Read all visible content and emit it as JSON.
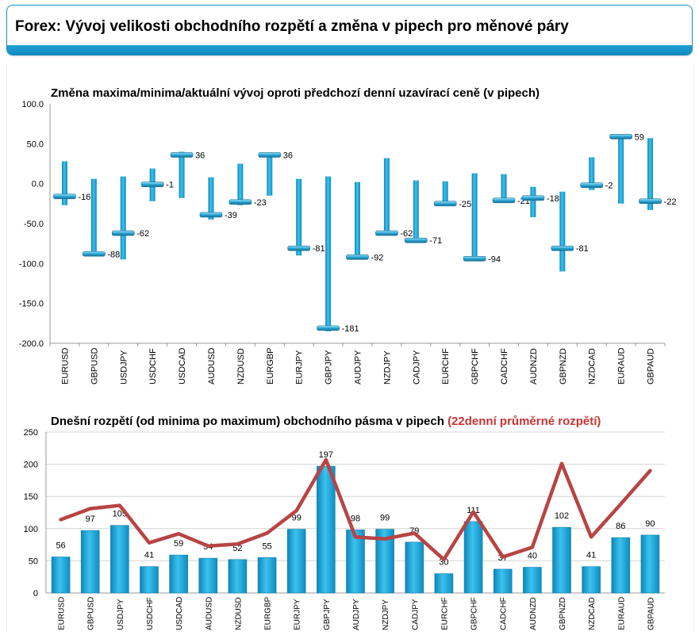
{
  "header": {
    "title": "Forex: Vývoj velikosti obchodního rozpětí a změna v pipech pro měnové páry"
  },
  "colors": {
    "bar": "#1a9fd0",
    "bar_dark": "#0f7fb0",
    "line": "#b84444",
    "accent": "#cc3333",
    "header_band": "#1a95c9"
  },
  "chart_data": [
    {
      "type": "range",
      "title": "Změna maxima/minima/aktuální vývoj oproti předchozí denní uzavírací ceně (v pipech)",
      "ylim": [
        -200,
        100
      ],
      "yticks": [
        "100.0",
        "50.0",
        "0.0",
        "-50.0",
        "-100.0",
        "-150.0",
        "-200.0"
      ],
      "ytick_values": [
        100,
        50,
        0,
        -50,
        -100,
        -150,
        -200
      ],
      "categories": [
        "EURUSD",
        "GBPUSD",
        "USDJPY",
        "USDCHF",
        "USDCAD",
        "AUDUSD",
        "NZDUSD",
        "EURGBP",
        "EURJPY",
        "GBPJPY",
        "AUDJPY",
        "NZDJPY",
        "CADJPY",
        "EURCHF",
        "GBPCHF",
        "CADCHF",
        "AUDNZD",
        "GBPNZD",
        "NZDCAD",
        "EURAUD",
        "GBPAUD"
      ],
      "high": [
        28,
        6,
        9,
        19,
        40,
        8,
        25,
        38,
        6,
        9,
        2,
        32,
        4,
        3,
        13,
        12,
        -4,
        -10,
        33,
        61,
        57
      ],
      "low": [
        -27,
        -88,
        -95,
        -22,
        -18,
        -45,
        -27,
        -15,
        -90,
        -185,
        -95,
        -63,
        -72,
        -25,
        -96,
        -22,
        -42,
        -110,
        -8,
        -25,
        -33
      ],
      "current": [
        -16,
        -88,
        -62,
        -1,
        36,
        -39,
        -23,
        36,
        -81,
        -181,
        -92,
        -62,
        -71,
        -25,
        -94,
        -21,
        -18,
        -81,
        -2,
        59,
        -22
      ],
      "labels": [
        "-16",
        "-88",
        "-62",
        "-1",
        "36",
        "-39",
        "-23",
        "36",
        "-81",
        "-181",
        "-92",
        "-62",
        "-71",
        "-25",
        "-94",
        "-21",
        "-18",
        "-81",
        "-2",
        "59",
        "-22"
      ]
    },
    {
      "type": "bar",
      "title": "Dnešní rozpětí (od minima po maximum) obchodního pásma v pipech",
      "title_accent": "(22denní průměrné rozpětí)",
      "ylim": [
        0,
        250
      ],
      "yticks": [
        "250",
        "200",
        "150",
        "100",
        "50",
        "0"
      ],
      "ytick_values": [
        250,
        200,
        150,
        100,
        50,
        0
      ],
      "categories": [
        "EURUSD",
        "GBPUSD",
        "USDJPY",
        "USDCHF",
        "USDCAD",
        "AUDUSD",
        "NZDUSD",
        "EURGBP",
        "EURJPY",
        "GBPJPY",
        "AUDJPY",
        "NZDJPY",
        "CADJPY",
        "EURCHF",
        "GBPCHF",
        "CADCHF",
        "AUDNZD",
        "GBPNZD",
        "NZDCAD",
        "EURAUD",
        "GBPAUD"
      ],
      "series": [
        {
          "values": [
            56,
            97,
            105,
            41,
            59,
            54,
            52,
            55,
            99,
            197,
            98,
            99,
            79,
            30,
            111,
            37,
            40,
            102,
            41,
            86,
            90
          ],
          "labels": [
            "56",
            "97",
            "105",
            "41",
            "59",
            "54",
            "52",
            "55",
            "99",
            "197",
            "98",
            "99",
            "79",
            "30",
            "111",
            "37",
            "40",
            "102",
            "41",
            "86",
            "90"
          ]
        },
        {
          "values": [
            114,
            131,
            136,
            78,
            92,
            73,
            76,
            93,
            128,
            207,
            87,
            84,
            93,
            52,
            126,
            56,
            71,
            201,
            87,
            138,
            190
          ]
        }
      ]
    }
  ]
}
